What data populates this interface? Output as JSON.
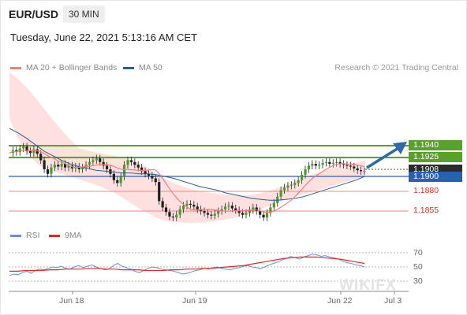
{
  "header": {
    "symbol": "EUR/USD",
    "timeframe": "30 MIN",
    "timestamp": "Tuesday, June 22, 2021 5:13:16 AM CET"
  },
  "legend": {
    "ma20_label": "MA 20 + Bollinger Bands",
    "ma20_color": "#f08080",
    "ma50_label": "MA 50",
    "ma50_color": "#2e5f8a",
    "credit": "Research © 2021 Trading Central"
  },
  "rsi_legend": {
    "rsi_label": "RSI",
    "rsi_color": "#6a8fd8",
    "ma_label": "9MA",
    "ma_color": "#d62c2c"
  },
  "levels": {
    "target_1": "1.1940",
    "target_2": "1.1925",
    "current_price": "1.1908",
    "pivot": "1.1900",
    "support_1": "1.1880",
    "support_2": "1.1855"
  },
  "x_axis": [
    "Jun 18",
    "Jun 19",
    "Jun 22",
    "Jul 3"
  ],
  "rsi_axis": [
    "70",
    "50",
    "30"
  ],
  "watermark": "WIKIFX",
  "chart_data": {
    "type": "candlestick",
    "instrument": "EUR/USD",
    "timeframe": "30 MIN",
    "ylim": [
      1.1845,
      1.1975
    ],
    "price_series": [
      1.1928,
      1.1931,
      1.1929,
      1.1933,
      1.1935,
      1.193,
      1.1928,
      1.1932,
      1.1927,
      1.192,
      1.191,
      1.1905,
      1.1912,
      1.1915,
      1.1913,
      1.1916,
      1.1912,
      1.1914,
      1.1911,
      1.1913,
      1.191,
      1.1912,
      1.1915,
      1.1918,
      1.192,
      1.1922,
      1.1918,
      1.1914,
      1.191,
      1.1905,
      1.1898,
      1.1895,
      1.1902,
      1.1915,
      1.192,
      1.1918,
      1.1915,
      1.1912,
      1.1908,
      1.1905,
      1.1903,
      1.19,
      1.1896,
      1.1875,
      1.1868,
      1.1863,
      1.1858,
      1.1857,
      1.186,
      1.1866,
      1.187,
      1.1872,
      1.1871,
      1.1869,
      1.1866,
      1.1864,
      1.1862,
      1.186,
      1.1859,
      1.1861,
      1.1864,
      1.1866,
      1.1869,
      1.187,
      1.1867,
      1.1865,
      1.1862,
      1.186,
      1.1862,
      1.1865,
      1.1868,
      1.1864,
      1.186,
      1.1857,
      1.1862,
      1.1868,
      1.1873,
      1.188,
      1.1887,
      1.189,
      1.1892,
      1.1893,
      1.1895,
      1.1898,
      1.1904,
      1.191,
      1.1914,
      1.1916,
      1.1914,
      1.1915,
      1.1917,
      1.1918,
      1.1916,
      1.1917,
      1.1918,
      1.1916,
      1.1915,
      1.1914,
      1.1913,
      1.1911,
      1.1909,
      1.1908,
      1.1908
    ],
    "ma50_series": [
      1.1955,
      1.195,
      1.1944,
      1.1937,
      1.193,
      1.1925,
      1.192,
      1.1916,
      1.1913,
      1.1911,
      1.1909,
      1.1908,
      1.1907,
      1.1906,
      1.1906,
      1.1905,
      1.1905,
      1.1904,
      1.1902,
      1.19,
      1.1897,
      1.1894,
      1.1891,
      1.1889,
      1.1887,
      1.1884,
      1.1882,
      1.188,
      1.1878,
      1.1877,
      1.1876,
      1.1876,
      1.1877,
      1.1878,
      1.188,
      1.1883,
      1.1886,
      1.1889,
      1.1892,
      1.1895,
      1.1898,
      1.1902
    ],
    "rsi_series": [
      38,
      40,
      39,
      42,
      44,
      41,
      45,
      47,
      46,
      48,
      50,
      49,
      51,
      48,
      47,
      50,
      52,
      49,
      51,
      53,
      50,
      48,
      46,
      47,
      52,
      55,
      51,
      49,
      47,
      44,
      42,
      45,
      48,
      50,
      49,
      47,
      46,
      45,
      44,
      42,
      40,
      41,
      43,
      45,
      46,
      48,
      47,
      49,
      50,
      48,
      47,
      46,
      48,
      49,
      51,
      52,
      50,
      49,
      48,
      50,
      53,
      55,
      57,
      60,
      62,
      65,
      63,
      61,
      64,
      66,
      68,
      67,
      65,
      66,
      64,
      63,
      61,
      58,
      56,
      55,
      53,
      52,
      50
    ],
    "rsi_ma_series": [
      44,
      44,
      45,
      45,
      45,
      46,
      46,
      47,
      47,
      47,
      48,
      48,
      47,
      47,
      46,
      46,
      46,
      45,
      45,
      45,
      46,
      46,
      47,
      47,
      48,
      48,
      49,
      50,
      51,
      52,
      54,
      56,
      58,
      60,
      62,
      63,
      64,
      64,
      64,
      63,
      62,
      61,
      59,
      57,
      55
    ],
    "rsi_levels": [
      70,
      50,
      30
    ],
    "forecast_arrow": {
      "from": 1.1908,
      "to": 1.194
    }
  }
}
